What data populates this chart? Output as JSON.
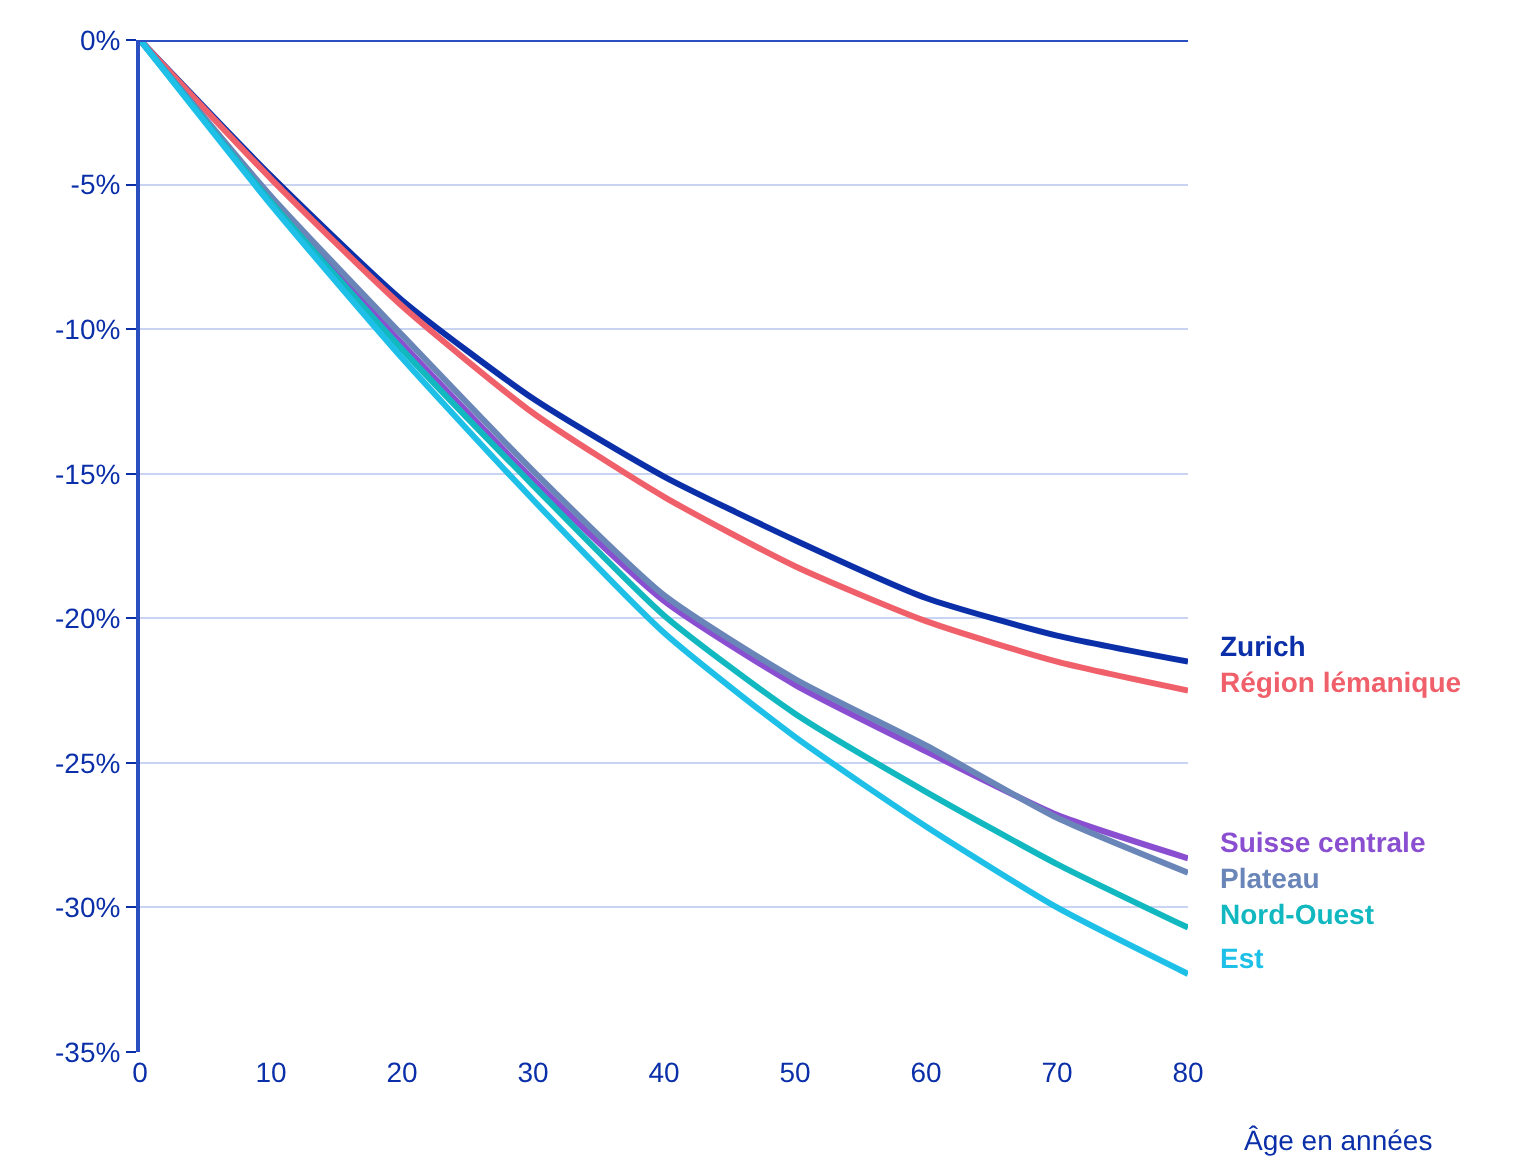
{
  "chart_data": {
    "type": "line",
    "xlabel": "Âge en années",
    "x": [
      0,
      10,
      20,
      30,
      40,
      50,
      60,
      70,
      80
    ],
    "series": [
      {
        "name": "Zurich",
        "color": "#0a2fa8",
        "values": [
          0,
          -4.7,
          -9.0,
          -12.4,
          -15.1,
          -17.3,
          -19.3,
          -20.6,
          -21.5
        ]
      },
      {
        "name": "Région lémanique",
        "color": "#f0606a",
        "values": [
          0,
          -4.8,
          -9.2,
          -12.9,
          -15.8,
          -18.2,
          -20.1,
          -21.5,
          -22.5
        ]
      },
      {
        "name": "Suisse centrale",
        "color": "#8a4fd0",
        "values": [
          0,
          -5.5,
          -10.5,
          -15.2,
          -19.4,
          -22.3,
          -24.6,
          -26.8,
          -28.3
        ]
      },
      {
        "name": "Plateau",
        "color": "#6a86b8",
        "values": [
          0,
          -5.4,
          -10.2,
          -14.9,
          -19.2,
          -22.1,
          -24.4,
          -26.9,
          -28.8
        ]
      },
      {
        "name": "Nord-Ouest",
        "color": "#12b8c0",
        "values": [
          0,
          -5.6,
          -10.7,
          -15.4,
          -19.9,
          -23.3,
          -26.0,
          -28.5,
          -30.7
        ]
      },
      {
        "name": "Est",
        "color": "#1ec0e8",
        "values": [
          0,
          -5.7,
          -11.0,
          -15.9,
          -20.5,
          -24.1,
          -27.2,
          -30.0,
          -32.3
        ]
      }
    ],
    "xlim": [
      0,
      80
    ],
    "xticks": [
      0,
      10,
      20,
      30,
      40,
      50,
      60,
      70,
      80
    ],
    "ylim": [
      -35,
      0
    ],
    "yticks": [
      {
        "value": 0,
        "label": "0%"
      },
      {
        "value": -5,
        "label": "-5%"
      },
      {
        "value": -10,
        "label": "-10%"
      },
      {
        "value": -15,
        "label": "-15%"
      },
      {
        "value": -20,
        "label": "-20%"
      },
      {
        "value": -25,
        "label": "-25%"
      },
      {
        "value": -30,
        "label": "-30%"
      },
      {
        "value": -35,
        "label": "-35%"
      }
    ],
    "ref_lines": [
      {
        "axis": "y",
        "value": 0,
        "color": "#2a4fc0"
      }
    ],
    "grid": "y",
    "legend": false,
    "marker": "none",
    "line_style": "solid"
  }
}
